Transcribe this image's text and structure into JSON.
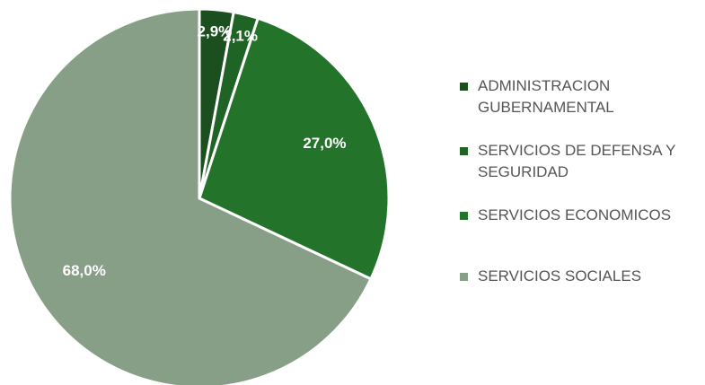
{
  "chart_data": {
    "type": "pie",
    "categories": [
      "ADMINISTRACION GUBERNAMENTAL",
      "SERVICIOS DE DEFENSA Y SEGURIDAD",
      "SERVICIOS ECONOMICOS",
      "SERVICIOS SOCIALES"
    ],
    "values": [
      2.9,
      2.1,
      27.0,
      68.0
    ],
    "value_labels": [
      "2,9%",
      "2,1%",
      "27,0%",
      "68,0%"
    ],
    "colors": [
      "#1c4f1f",
      "#1f6425",
      "#23742a",
      "#879f87"
    ],
    "legend": "right"
  }
}
